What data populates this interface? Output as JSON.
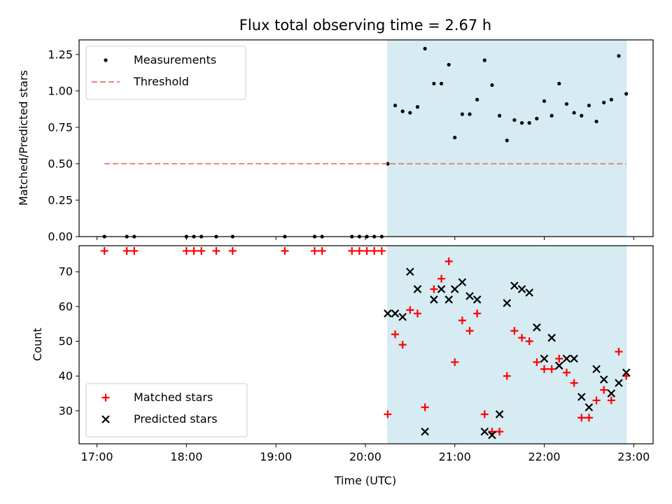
{
  "chart_data": [
    {
      "type": "scatter",
      "title": "Flux total observing time = 2.67 h",
      "ylabel": "Matched/Predicted stars",
      "xlim": [
        "16:48",
        "23:13"
      ],
      "ylim": [
        0,
        1.35
      ],
      "yticks": [
        "0.00",
        "0.25",
        "0.50",
        "0.75",
        "1.00",
        "1.25"
      ],
      "grid": false,
      "legend_position": "upper-left",
      "shaded_region": {
        "color": "#add8e6",
        "x": [
          "20:15",
          "22:55"
        ]
      },
      "series": [
        {
          "name": "Measurements",
          "marker": "dot",
          "color": "#000000",
          "points": [
            [
              "17:05",
              0
            ],
            [
              "17:20",
              0
            ],
            [
              "17:25",
              0
            ],
            [
              "18:00",
              0
            ],
            [
              "18:05",
              0
            ],
            [
              "18:10",
              0
            ],
            [
              "18:20",
              0
            ],
            [
              "18:31",
              0
            ],
            [
              "19:06",
              0
            ],
            [
              "19:26",
              0
            ],
            [
              "19:31",
              0
            ],
            [
              "19:51",
              0
            ],
            [
              "19:56",
              0
            ],
            [
              "20:01",
              0
            ],
            [
              "20:06",
              0
            ],
            [
              "20:11",
              0
            ],
            [
              "20:15",
              0.5
            ],
            [
              "20:20",
              0.9
            ],
            [
              "20:25",
              0.86
            ],
            [
              "20:30",
              0.85
            ],
            [
              "20:35",
              0.89
            ],
            [
              "20:40",
              1.29
            ],
            [
              "20:46",
              1.05
            ],
            [
              "20:51",
              1.05
            ],
            [
              "20:56",
              1.18
            ],
            [
              "21:00",
              0.68
            ],
            [
              "21:05",
              0.84
            ],
            [
              "21:10",
              0.84
            ],
            [
              "21:15",
              0.94
            ],
            [
              "21:20",
              1.21
            ],
            [
              "21:25",
              1.04
            ],
            [
              "21:30",
              0.83
            ],
            [
              "21:35",
              0.66
            ],
            [
              "21:40",
              0.8
            ],
            [
              "21:45",
              0.78
            ],
            [
              "21:50",
              0.78
            ],
            [
              "21:55",
              0.81
            ],
            [
              "22:00",
              0.93
            ],
            [
              "22:05",
              0.83
            ],
            [
              "22:10",
              1.05
            ],
            [
              "22:15",
              0.91
            ],
            [
              "22:20",
              0.85
            ],
            [
              "22:25",
              0.83
            ],
            [
              "22:30",
              0.9
            ],
            [
              "22:35",
              0.79
            ],
            [
              "22:40",
              0.92
            ],
            [
              "22:45",
              0.94
            ],
            [
              "22:50",
              1.24
            ],
            [
              "22:55",
              0.98
            ]
          ]
        },
        {
          "name": "Threshold",
          "type": "line",
          "style": "dashed",
          "color": "#f08080",
          "points": [
            [
              "17:05",
              0.5
            ],
            [
              "22:55",
              0.5
            ]
          ]
        }
      ]
    },
    {
      "type": "scatter",
      "xlabel": "Time (UTC)",
      "ylabel": "Count",
      "xlim": [
        "16:48",
        "23:13"
      ],
      "ylim": [
        20.5,
        77.5
      ],
      "xticks": [
        "17:00",
        "18:00",
        "19:00",
        "20:00",
        "21:00",
        "22:00",
        "23:00"
      ],
      "yticks": [
        "30",
        "40",
        "50",
        "60",
        "70"
      ],
      "grid": false,
      "legend_position": "lower-left",
      "shaded_region": {
        "color": "#add8e6",
        "x": [
          "20:15",
          "22:55"
        ]
      },
      "series": [
        {
          "name": "Matched stars",
          "marker": "plus",
          "color": "#ff0000",
          "points": [
            [
              "17:05",
              76
            ],
            [
              "17:20",
              76
            ],
            [
              "17:25",
              76
            ],
            [
              "18:00",
              76
            ],
            [
              "18:05",
              76
            ],
            [
              "18:10",
              76
            ],
            [
              "18:20",
              76
            ],
            [
              "18:31",
              76
            ],
            [
              "19:06",
              76
            ],
            [
              "19:26",
              76
            ],
            [
              "19:31",
              76
            ],
            [
              "19:51",
              76
            ],
            [
              "19:56",
              76
            ],
            [
              "20:01",
              76
            ],
            [
              "20:06",
              76
            ],
            [
              "20:11",
              76
            ],
            [
              "20:15",
              29
            ],
            [
              "20:20",
              52
            ],
            [
              "20:25",
              49
            ],
            [
              "20:30",
              59
            ],
            [
              "20:35",
              58
            ],
            [
              "20:40",
              31
            ],
            [
              "20:46",
              65
            ],
            [
              "20:51",
              68
            ],
            [
              "20:56",
              73
            ],
            [
              "21:00",
              44
            ],
            [
              "21:05",
              56
            ],
            [
              "21:10",
              53
            ],
            [
              "21:15",
              58
            ],
            [
              "21:20",
              29
            ],
            [
              "21:25",
              24
            ],
            [
              "21:30",
              24
            ],
            [
              "21:35",
              40
            ],
            [
              "21:40",
              53
            ],
            [
              "21:45",
              51
            ],
            [
              "21:50",
              50
            ],
            [
              "21:55",
              44
            ],
            [
              "22:00",
              42
            ],
            [
              "22:05",
              42
            ],
            [
              "22:10",
              45
            ],
            [
              "22:15",
              41
            ],
            [
              "22:20",
              38
            ],
            [
              "22:25",
              28
            ],
            [
              "22:30",
              28
            ],
            [
              "22:35",
              33
            ],
            [
              "22:40",
              36
            ],
            [
              "22:45",
              33
            ],
            [
              "22:50",
              47
            ],
            [
              "22:55",
              40
            ]
          ]
        },
        {
          "name": "Predicted stars",
          "marker": "x",
          "color": "#000000",
          "points": [
            [
              "20:15",
              58
            ],
            [
              "20:20",
              58
            ],
            [
              "20:25",
              57
            ],
            [
              "20:30",
              70
            ],
            [
              "20:35",
              65
            ],
            [
              "20:40",
              24
            ],
            [
              "20:46",
              62
            ],
            [
              "20:51",
              65
            ],
            [
              "20:56",
              62
            ],
            [
              "21:00",
              65
            ],
            [
              "21:05",
              67
            ],
            [
              "21:10",
              63
            ],
            [
              "21:15",
              62
            ],
            [
              "21:20",
              24
            ],
            [
              "21:25",
              23
            ],
            [
              "21:30",
              29
            ],
            [
              "21:35",
              61
            ],
            [
              "21:40",
              66
            ],
            [
              "21:45",
              65
            ],
            [
              "21:50",
              64
            ],
            [
              "21:55",
              54
            ],
            [
              "22:00",
              45
            ],
            [
              "22:05",
              51
            ],
            [
              "22:10",
              43
            ],
            [
              "22:15",
              45
            ],
            [
              "22:20",
              45
            ],
            [
              "22:25",
              34
            ],
            [
              "22:30",
              31
            ],
            [
              "22:35",
              42
            ],
            [
              "22:40",
              39
            ],
            [
              "22:45",
              35
            ],
            [
              "22:50",
              38
            ],
            [
              "22:55",
              41
            ]
          ]
        }
      ]
    }
  ]
}
